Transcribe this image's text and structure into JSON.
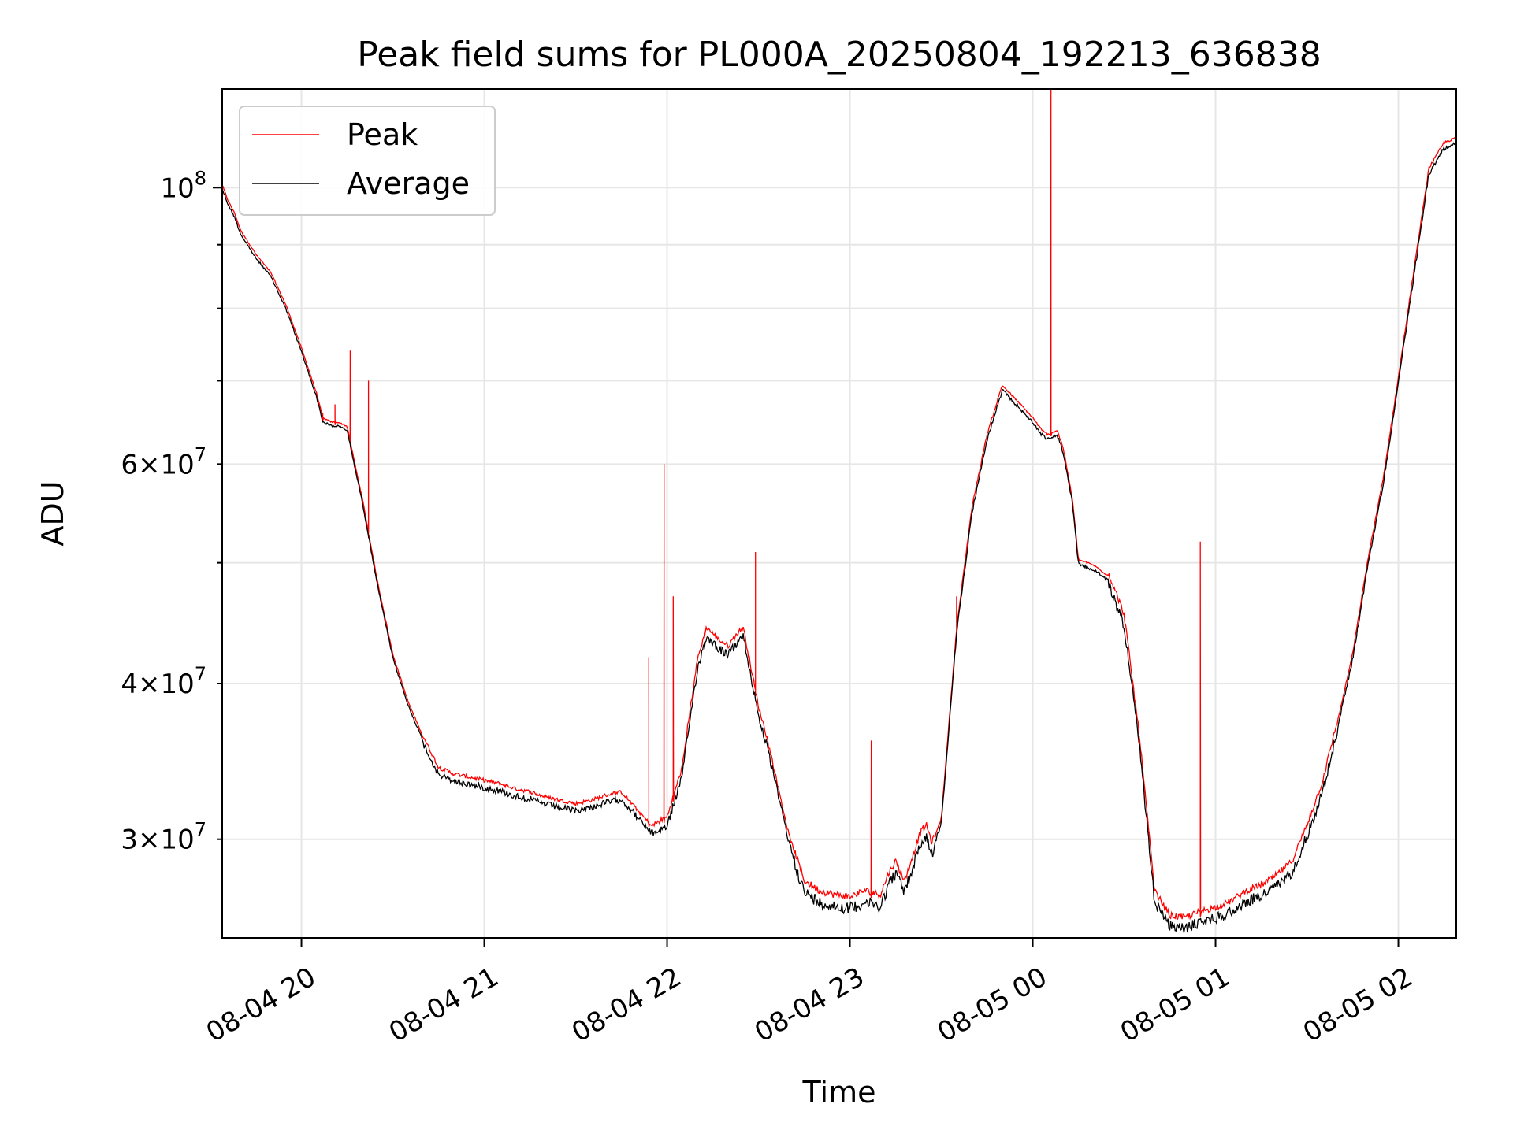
{
  "chart_data": {
    "type": "line",
    "title": "Peak field sums for PL000A_20250804_192213_636838",
    "xlabel": "Time",
    "ylabel": "ADU",
    "y_scale": "log",
    "x_unit": "minutes after 08-04 19:00",
    "xlim": [
      34,
      439
    ],
    "ylim": [
      25000000,
      120000000
    ],
    "grid": true,
    "legend_position": "upper-left",
    "x_ticks": [
      {
        "value": 60,
        "label": "08-04 20"
      },
      {
        "value": 120,
        "label": "08-04 21"
      },
      {
        "value": 180,
        "label": "08-04 22"
      },
      {
        "value": 240,
        "label": "08-04 23"
      },
      {
        "value": 300,
        "label": "08-05 00"
      },
      {
        "value": 360,
        "label": "08-05 01"
      },
      {
        "value": 420,
        "label": "08-05 02"
      }
    ],
    "y_ticks_major": [
      {
        "value": 100000000,
        "base": "10",
        "exp": "8",
        "mant": ""
      }
    ],
    "y_ticks_minor_labeled": [
      {
        "value": 30000000,
        "mant": "3",
        "base": "10",
        "exp": "7"
      },
      {
        "value": 40000000,
        "mant": "4",
        "base": "10",
        "exp": "7"
      },
      {
        "value": 60000000,
        "mant": "6",
        "base": "10",
        "exp": "7"
      }
    ],
    "y_ticks_minor_unlabeled": [
      50000000,
      70000000,
      80000000,
      90000000
    ],
    "series": [
      {
        "name": "Peak",
        "color": "#ff0000"
      },
      {
        "name": "Average",
        "color": "#000000"
      }
    ],
    "baseline": {
      "x": [
        34,
        36,
        38,
        40,
        45,
        50,
        55,
        60,
        65,
        67,
        70,
        72,
        75,
        78,
        80,
        85,
        90,
        95,
        100,
        105,
        110,
        115,
        120,
        125,
        130,
        135,
        140,
        145,
        150,
        155,
        160,
        165,
        175,
        180,
        185,
        187,
        190,
        193,
        197,
        200,
        203,
        205,
        210,
        212,
        215,
        220,
        225,
        230,
        235,
        240,
        245,
        250,
        253,
        255,
        258,
        260,
        263,
        265,
        267,
        270,
        275,
        280,
        285,
        290,
        295,
        300,
        303,
        305,
        308,
        310,
        313,
        315,
        320,
        325,
        330,
        335,
        340,
        345,
        350,
        355,
        360,
        365,
        370,
        375,
        380,
        385,
        390,
        395,
        400,
        405,
        410,
        415,
        420,
        425,
        430,
        435,
        439
      ],
      "y": [
        100000000,
        97000000,
        95000000,
        92000000,
        88000000,
        85000000,
        80000000,
        74000000,
        68000000,
        65000000,
        64500000,
        64500000,
        64000000,
        59000000,
        56000000,
        48000000,
        42000000,
        38500000,
        36000000,
        34000000,
        33600000,
        33400000,
        33200000,
        33000000,
        32700000,
        32500000,
        32200000,
        32000000,
        31800000,
        32000000,
        32300000,
        32500000,
        30500000,
        31000000,
        34000000,
        37000000,
        41500000,
        44000000,
        43000000,
        42500000,
        43500000,
        44000000,
        38000000,
        36500000,
        34000000,
        30000000,
        27500000,
        27000000,
        26800000,
        26700000,
        27000000,
        26800000,
        28000000,
        28500000,
        27500000,
        28500000,
        30000000,
        30500000,
        29500000,
        31000000,
        44000000,
        55000000,
        63000000,
        69000000,
        67000000,
        65000000,
        63500000,
        63000000,
        63500000,
        61500000,
        56000000,
        50000000,
        49500000,
        48500000,
        45000000,
        36000000,
        27000000,
        25800000,
        25700000,
        26000000,
        26200000,
        26500000,
        27000000,
        27300000,
        27800000,
        28500000,
        30500000,
        33000000,
        37000000,
        42000000,
        50000000,
        58000000,
        70000000,
        85000000,
        103000000,
        108000000,
        109000000
      ]
    },
    "peak_spikes": [
      {
        "x": 67,
        "y": 66000000
      },
      {
        "x": 71,
        "y": 67000000
      },
      {
        "x": 76,
        "y": 74000000
      },
      {
        "x": 82,
        "y": 70000000
      },
      {
        "x": 174,
        "y": 42000000
      },
      {
        "x": 179,
        "y": 60000000
      },
      {
        "x": 182,
        "y": 47000000
      },
      {
        "x": 209,
        "y": 51000000
      },
      {
        "x": 247,
        "y": 36000000
      },
      {
        "x": 275,
        "y": 47000000
      },
      {
        "x": 306,
        "y": 120000000
      },
      {
        "x": 355,
        "y": 52000000
      }
    ]
  },
  "legend": {
    "peak_label": "Peak",
    "average_label": "Average"
  }
}
